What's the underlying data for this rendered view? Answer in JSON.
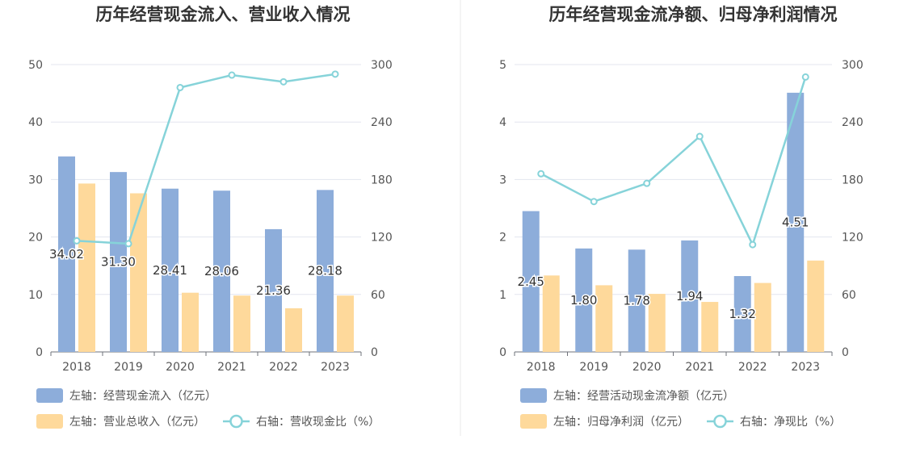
{
  "colors": {
    "bar_left": "#8dadda",
    "bar_right": "#fed99b",
    "line": "#86d3d9",
    "grid": "#e3e6ef",
    "axis": "#555555",
    "label": "#333333",
    "divider": "#e8e8e8"
  },
  "chart_data": [
    {
      "type": "bar",
      "title": "历年经营现金流入、营业收入情况",
      "categories": [
        "2018",
        "2019",
        "2020",
        "2021",
        "2022",
        "2023"
      ],
      "y_left_ticks": [
        "0",
        "10",
        "20",
        "30",
        "40",
        "50"
      ],
      "y_right_ticks": [
        "0",
        "60",
        "120",
        "180",
        "240",
        "300"
      ],
      "ylim_left": [
        0,
        50
      ],
      "ylim_right": [
        0,
        300
      ],
      "series": [
        {
          "name": "左轴：经营现金流入（亿元）",
          "axis": "left",
          "kind": "bar",
          "values": [
            34.02,
            31.3,
            28.41,
            28.06,
            21.36,
            28.18
          ],
          "labels": [
            "34.02",
            "31.30",
            "28.41",
            "28.06",
            "21.36",
            "28.18"
          ]
        },
        {
          "name": "左轴：营业总收入（亿元）",
          "axis": "left",
          "kind": "bar",
          "values": [
            29.3,
            27.6,
            10.3,
            9.8,
            7.6,
            9.8
          ]
        },
        {
          "name": "右轴：营收现金比（%）",
          "axis": "right",
          "kind": "line",
          "values": [
            116,
            113,
            276,
            289,
            282,
            290
          ]
        }
      ],
      "legend_rows": [
        [
          0
        ],
        [
          1,
          2
        ]
      ],
      "grid": true
    },
    {
      "type": "bar",
      "title": "历年经营现金流净额、归母净利润情况",
      "categories": [
        "2018",
        "2019",
        "2020",
        "2021",
        "2022",
        "2023"
      ],
      "y_left_ticks": [
        "0",
        "1",
        "2",
        "3",
        "4",
        "5"
      ],
      "y_right_ticks": [
        "0",
        "60",
        "120",
        "180",
        "240",
        "300"
      ],
      "ylim_left": [
        0,
        5
      ],
      "ylim_right": [
        0,
        300
      ],
      "series": [
        {
          "name": "左轴：经营活动现金流净额（亿元）",
          "axis": "left",
          "kind": "bar",
          "values": [
            2.45,
            1.8,
            1.78,
            1.94,
            1.32,
            4.51
          ],
          "labels": [
            "2.45",
            "1.80",
            "1.78",
            "1.94",
            "1.32",
            "4.51"
          ]
        },
        {
          "name": "左轴：归母净利润（亿元）",
          "axis": "left",
          "kind": "bar",
          "values": [
            1.33,
            1.16,
            1.01,
            0.87,
            1.2,
            1.59
          ]
        },
        {
          "name": "右轴：净现比（%）",
          "axis": "right",
          "kind": "line",
          "values": [
            186,
            157,
            176,
            225,
            112,
            287
          ]
        }
      ],
      "legend_rows": [
        [
          0
        ],
        [
          1,
          2
        ]
      ],
      "grid": true
    }
  ]
}
